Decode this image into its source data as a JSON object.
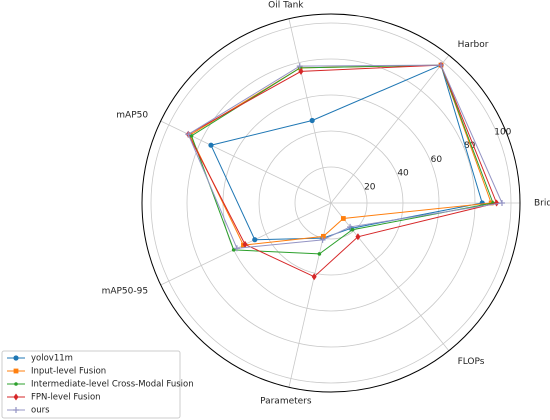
{
  "chart_data": {
    "type": "radar",
    "categories": [
      "Bridge",
      "Harbor",
      "Oil Tank",
      "mAP50",
      "mAP50-95",
      "Parameters",
      "FLOPs"
    ],
    "rlim": [
      0,
      105
    ],
    "rticks": [
      20,
      40,
      60,
      80,
      100
    ],
    "grid": true,
    "legend": "lower left",
    "series": [
      {
        "name": "yolov11m",
        "color": "#1f77b4",
        "marker": "circle",
        "values": [
          84,
          98,
          47,
          74,
          47,
          20,
          18
        ]
      },
      {
        "name": "Input-level Fusion",
        "color": "#ff7f0e",
        "marker": "square",
        "values": [
          89,
          98,
          77,
          87,
          54,
          19,
          11
        ]
      },
      {
        "name": "Intermediate-level Cross-Modal Fusion",
        "color": "#2ca02c",
        "marker": "dot",
        "values": [
          90,
          98,
          77,
          86,
          60,
          29,
          19
        ]
      },
      {
        "name": "FPN-level Fusion",
        "color": "#d62728",
        "marker": "diamond",
        "values": [
          92,
          98,
          75,
          88,
          53,
          42,
          24
        ]
      },
      {
        "name": "ours",
        "color": "#9494c4",
        "marker": "plus",
        "values": [
          95,
          98,
          78,
          88,
          58,
          21,
          17
        ]
      }
    ]
  }
}
